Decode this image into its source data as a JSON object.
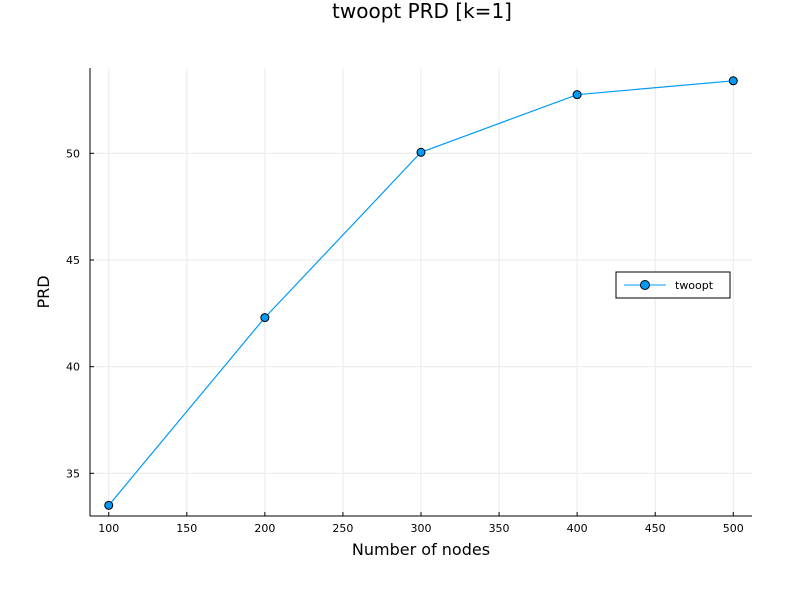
{
  "chart_data": {
    "type": "line",
    "title": "twoopt PRD [k=1]",
    "xlabel": "Number of nodes",
    "ylabel": "PRD",
    "x": [
      100,
      200,
      300,
      400,
      500
    ],
    "series": [
      {
        "name": "twoopt",
        "values": [
          33.5,
          42.3,
          50.05,
          52.75,
          53.4
        ],
        "color": "#009af9"
      }
    ],
    "xlim": [
      88,
      512
    ],
    "ylim": [
      33.0,
      54.0
    ],
    "xticks": [
      100,
      150,
      200,
      250,
      300,
      350,
      400,
      450,
      500
    ],
    "yticks": [
      35,
      40,
      45,
      50
    ],
    "grid": true,
    "legend_position": "right"
  }
}
